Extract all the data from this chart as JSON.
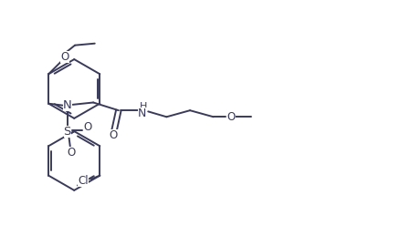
{
  "background_color": "#ffffff",
  "line_color": "#3a3a5a",
  "line_width": 1.4,
  "font_size": 8.5,
  "fig_width": 4.39,
  "fig_height": 2.7,
  "dpi": 100,
  "xlim": [
    0,
    11
  ],
  "ylim": [
    0,
    6.8
  ]
}
